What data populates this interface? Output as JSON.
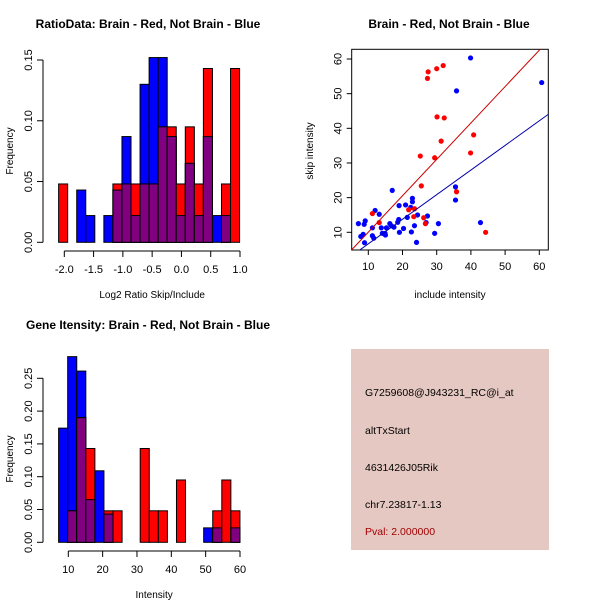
{
  "colors": {
    "red": "#ff0000",
    "blue": "#0000ff",
    "overlap": "#800080",
    "red_line": "#cc0000",
    "blue_line": "#0000aa",
    "panel_bg": "#e6c8c2",
    "pval": "#a00000"
  },
  "chart_data": [
    {
      "type": "bar",
      "subtype": "overlaid-histogram",
      "title": "RatioData: Brain - Red, Not Brain - Blue",
      "xlabel": "Log2 Ratio Skip/Include",
      "ylabel": "Frequency",
      "xticks": [
        "-2.0",
        "-1.5",
        "-1.0",
        "-0.5",
        "0.0",
        "0.5",
        "1.0"
      ],
      "yticks": [
        "0.00",
        "0.05",
        "0.10",
        "0.15"
      ],
      "xlim": [
        -2.1,
        1.0
      ],
      "ylim": [
        0,
        0.15
      ],
      "bin_start": -2.097,
      "bin_width": 0.1545,
      "series": [
        {
          "name": "Brain",
          "color": "red",
          "values": [
            0.048,
            0,
            0,
            0,
            0,
            0,
            0.048,
            0.048,
            0.048,
            0.048,
            0.048,
            0.095,
            0.095,
            0.048,
            0.095,
            0.048,
            0.143,
            0,
            0.048,
            0.143
          ]
        },
        {
          "name": "Not Brain",
          "color": "blue",
          "values": [
            0,
            0,
            0.043,
            0.022,
            0,
            0.022,
            0.043,
            0.087,
            0.022,
            0.13,
            0.152,
            0.152,
            0.087,
            0.022,
            0.065,
            0.022,
            0.087,
            0.022,
            0.022,
            0
          ]
        }
      ]
    },
    {
      "type": "scatter",
      "title": "Brain - Red, Not Brain - Blue",
      "xlabel": "include intensity",
      "ylabel": "skip intensity",
      "xticks": [
        "10",
        "20",
        "30",
        "40",
        "50",
        "60"
      ],
      "yticks": [
        "10",
        "20",
        "30",
        "40",
        "50",
        "60"
      ],
      "xlim": [
        5.1,
        62.6
      ],
      "ylim": [
        4.9,
        62.8
      ],
      "series": [
        {
          "name": "Brain",
          "color": "red",
          "points": [
            [
              11.2,
              15.4
            ],
            [
              13.2,
              12.8
            ],
            [
              27.3,
              54.4
            ],
            [
              27.5,
              56.3
            ],
            [
              30.0,
              57.2
            ],
            [
              31.9,
              58.1
            ],
            [
              30.1,
              43.3
            ],
            [
              32.2,
              43.0
            ],
            [
              31.3,
              36.3
            ],
            [
              25.2,
              32.0
            ],
            [
              29.4,
              31.5
            ],
            [
              25.5,
              23.4
            ],
            [
              35.8,
              21.7
            ],
            [
              39.9,
              32.9
            ],
            [
              40.8,
              38.1
            ],
            [
              44.3,
              10.0
            ],
            [
              21.8,
              16.5
            ],
            [
              23.5,
              16.8
            ],
            [
              23.3,
              14.5
            ],
            [
              26.2,
              14.2
            ],
            [
              26.7,
              12.5
            ]
          ],
          "fit": {
            "slope": 1.05,
            "intercept": -0.46
          }
        },
        {
          "name": "Not Brain",
          "color": "blue",
          "points": [
            [
              7.1,
              12.5
            ],
            [
              7.8,
              8.8
            ],
            [
              8.5,
              9.4
            ],
            [
              8.8,
              12.3
            ],
            [
              9.1,
              13.3
            ],
            [
              8.9,
              7.0
            ],
            [
              11.2,
              11.3
            ],
            [
              11.2,
              9.0
            ],
            [
              11.6,
              8.3
            ],
            [
              12.0,
              16.3
            ],
            [
              13.2,
              15.2
            ],
            [
              13.8,
              11.3
            ],
            [
              14.1,
              9.7
            ],
            [
              14.9,
              9.7
            ],
            [
              15.0,
              9.2
            ],
            [
              15.3,
              11.3
            ],
            [
              16.3,
              12.5
            ],
            [
              16.7,
              11.9
            ],
            [
              17.0,
              22.1
            ],
            [
              17.5,
              11.5
            ],
            [
              18.6,
              12.9
            ],
            [
              18.9,
              13.7
            ],
            [
              19.0,
              17.7
            ],
            [
              19.1,
              10.0
            ],
            [
              20.3,
              11.1
            ],
            [
              20.9,
              17.9
            ],
            [
              21.4,
              14.3
            ],
            [
              22.4,
              17.2
            ],
            [
              22.9,
              19.8
            ],
            [
              22.9,
              18.8
            ],
            [
              23.5,
              11.9
            ],
            [
              22.6,
              10.1
            ],
            [
              24.1,
              7.1
            ],
            [
              24.4,
              15.0
            ],
            [
              26.9,
              12.8
            ],
            [
              27.3,
              14.7
            ],
            [
              29.4,
              9.7
            ],
            [
              30.5,
              12.5
            ],
            [
              35.5,
              23.1
            ],
            [
              35.5,
              19.3
            ],
            [
              35.8,
              50.8
            ],
            [
              39.9,
              60.3
            ],
            [
              42.8,
              12.8
            ],
            [
              60.7,
              53.2
            ]
          ],
          "fit": {
            "slope": 0.71,
            "intercept": -0.43
          }
        }
      ]
    },
    {
      "type": "bar",
      "subtype": "overlaid-histogram",
      "title": "Gene Itensity: Brain - Red, Not Brain - Blue",
      "xlabel": "Intensity",
      "ylabel": "Frequency",
      "xticks": [
        "10",
        "20",
        "30",
        "40",
        "50",
        "60"
      ],
      "yticks": [
        "0.00",
        "0.05",
        "0.10",
        "0.15",
        "0.20",
        "0.25"
      ],
      "xlim": [
        7.2,
        60.0
      ],
      "ylim": [
        0,
        0.283
      ],
      "bin_start": 7.18,
      "bin_width": 2.64,
      "series": [
        {
          "name": "Brain",
          "color": "red",
          "values": [
            0,
            0.048,
            0.19,
            0.143,
            0,
            0.048,
            0.048,
            0,
            0,
            0.143,
            0.048,
            0.048,
            0,
            0.095,
            0,
            0,
            0,
            0.048,
            0.095,
            0.048
          ]
        },
        {
          "name": "Not Brain",
          "color": "blue",
          "values": [
            0.174,
            0.283,
            0.261,
            0.065,
            0.109,
            0.043,
            0,
            0,
            0,
            0,
            0,
            0,
            0,
            0,
            0,
            0,
            0.022,
            0.022,
            0,
            0.022
          ]
        }
      ]
    }
  ],
  "info_panel": {
    "probe_id": "G7259608@J943231_RC@i_at",
    "event_type": "altTxStart",
    "gene": "4631426J05Rik",
    "location": "chr7.23817-1.13",
    "pval": "Pval: 2.000000"
  }
}
